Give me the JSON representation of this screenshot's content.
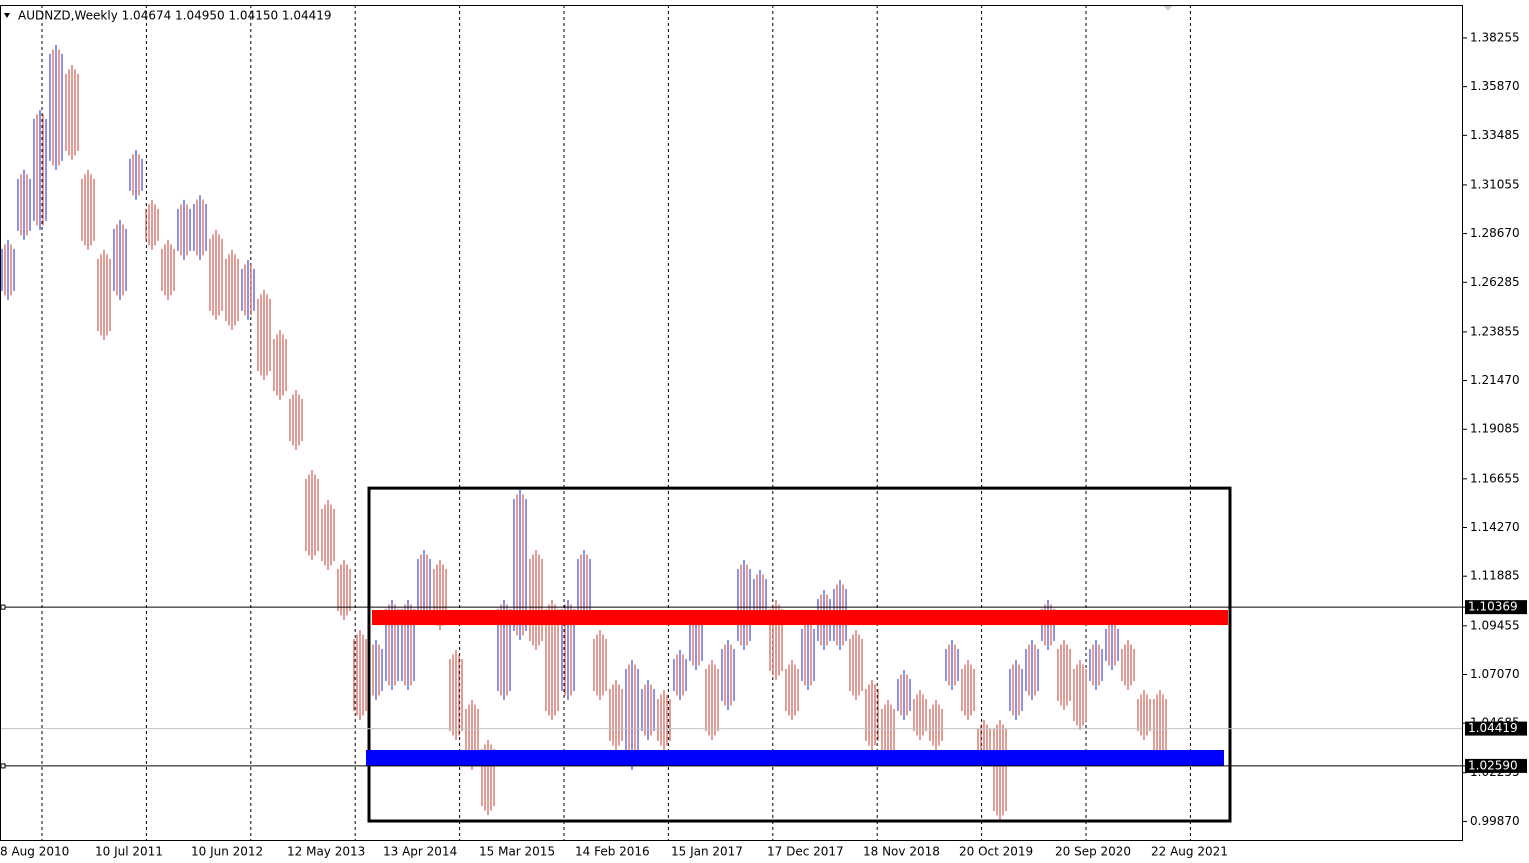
{
  "chart_data": {
    "type": "ohlc",
    "title": "AUDNZD,Weekly  1.04674 1.04950 1.04150 1.04419",
    "up_color": "#2222cc",
    "down_color": "#c0392b",
    "categories": [
      "8 Aug 2010",
      null,
      null,
      null,
      null,
      "10 Jul 2011",
      null,
      null,
      null,
      null,
      null,
      "10 Jun 2012",
      null,
      null,
      null,
      null,
      null,
      "12 May 2013",
      null,
      null,
      null,
      null,
      null,
      "13 Apr 2014",
      null,
      null,
      null,
      null,
      null,
      "15 Mar 2015",
      null,
      null,
      null,
      null,
      null,
      "14 Feb 2016",
      null,
      null,
      null,
      null,
      null,
      "15 Jan 2017",
      null,
      null,
      null,
      null,
      null,
      "17 Dec 2017",
      null,
      null,
      null,
      null,
      null,
      "18 Nov 2018",
      null,
      null,
      null,
      null,
      null,
      "20 Oct 2019",
      null,
      null,
      null,
      null,
      null,
      "20 Sep 2020",
      null,
      null,
      null,
      null,
      null,
      "22 Aug 2021",
      null
    ],
    "high": [
      1.2836,
      1.3179,
      1.3473,
      1.3791,
      1.3693,
      1.3179,
      1.2787,
      1.2934,
      1.3277,
      1.3032,
      1.2836,
      1.3032,
      1.3056,
      1.2885,
      1.2787,
      1.2738,
      1.2591,
      1.2395,
      1.2101,
      1.1709,
      1.1562,
      1.1268,
      1.0925,
      1.0876,
      1.1072,
      1.1072,
      1.1317,
      1.1268,
      1.0827,
      1.0582,
      1.0386,
      1.1072,
      1.1611,
      1.1317,
      1.1072,
      1.1072,
      1.1317,
      1.0925,
      1.068,
      1.0778,
      1.068,
      1.0631,
      1.0827,
      1.1023,
      1.0778,
      1.0876,
      1.1268,
      1.1219,
      1.1072,
      1.0778,
      1.0974,
      1.1121,
      1.117,
      1.0925,
      1.068,
      1.0582,
      1.0729,
      1.0631,
      1.0582,
      1.0876,
      1.0778,
      1.0484,
      1.0484,
      1.0778,
      1.0876,
      1.1072,
      1.0876,
      1.0778,
      1.0876,
      1.0974,
      1.0876,
      1.0631,
      1.0631
    ],
    "low": [
      1.2542,
      1.2836,
      1.2885,
      1.3179,
      1.3228,
      1.2787,
      1.2346,
      1.2542,
      1.3032,
      1.2787,
      1.2542,
      1.2738,
      1.2738,
      1.2444,
      1.2395,
      1.2444,
      1.215,
      1.2052,
      1.1807,
      1.1268,
      1.1219,
      1.0974,
      1.0484,
      1.0582,
      1.0631,
      1.0631,
      1.0974,
      1.0925,
      1.0386,
      1.0239,
      1.0018,
      1.0582,
      1.0876,
      1.0827,
      1.0484,
      1.0582,
      1.0974,
      1.0582,
      1.0337,
      1.0239,
      1.0386,
      1.0337,
      1.0582,
      1.0729,
      1.0386,
      1.0533,
      1.0827,
      1.0974,
      1.068,
      1.0484,
      1.0631,
      1.0827,
      1.0827,
      1.0582,
      1.0337,
      1.0288,
      1.0484,
      1.0386,
      1.0337,
      1.0631,
      1.0484,
      1.0288,
      0.9994,
      1.0484,
      1.0582,
      1.0827,
      1.0533,
      1.0435,
      1.0631,
      1.0729,
      1.0631,
      1.0386,
      1.0264
    ],
    "ylim": [
      0.9896,
      1.3987
    ],
    "yticks": [
      1.38255,
      {
        "value": 1.3587,
        "label": "1.35870"
      },
      1.33485,
      1.31055,
      {
        "value": 1.2867,
        "label": "1.28670"
      },
      1.26285,
      1.23855,
      {
        "value": 1.2147,
        "label": "1.21470"
      },
      1.19085,
      1.16655,
      {
        "value": 1.1427,
        "label": "1.14270"
      },
      1.11885,
      1.09455,
      {
        "value": 1.0707,
        "label": "1.07070"
      },
      1.04685,
      1.02255,
      {
        "value": 0.9987,
        "label": "0.99870"
      }
    ],
    "levels": [
      1.10369,
      {
        "value": 1.0259,
        "label": "1.02590"
      }
    ],
    "last_price": 1.04419,
    "zones": [
      {
        "from": 0.9989,
        "to": 1.162,
        "color": "#000000",
        "style": "outline"
      },
      {
        "from": 1.0949,
        "to": 1.1023,
        "color": "#ff0000",
        "style": "fill"
      },
      {
        "from": 1.0258,
        "to": 1.0337,
        "color": "#0000ff",
        "style": "fill"
      }
    ]
  }
}
